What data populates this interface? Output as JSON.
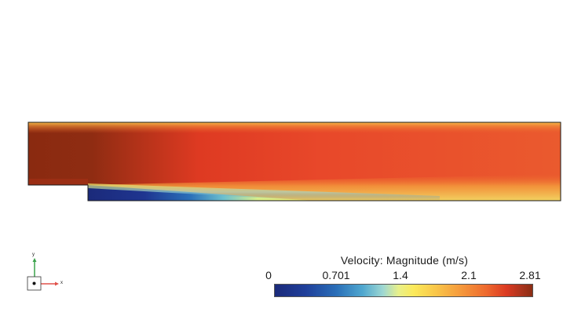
{
  "view": {
    "background": "#ffffff",
    "field": "velocity-magnitude-contour"
  },
  "triad": {
    "x_label": "x",
    "y_label": "y",
    "x_axis_color": "#e0514a",
    "y_axis_color": "#3aa24a"
  },
  "colorbar": {
    "title": "Velocity: Magnitude (m/s)",
    "ticks": [
      "0",
      "0.701",
      "1.4",
      "2.1",
      "2.81"
    ],
    "min": 0,
    "max": 2.81,
    "colormap": [
      "#1b2a7a",
      "#2a6fb8",
      "#9ed7d2",
      "#fbe95a",
      "#f59a3c",
      "#db3a22",
      "#8b2d14"
    ]
  }
}
